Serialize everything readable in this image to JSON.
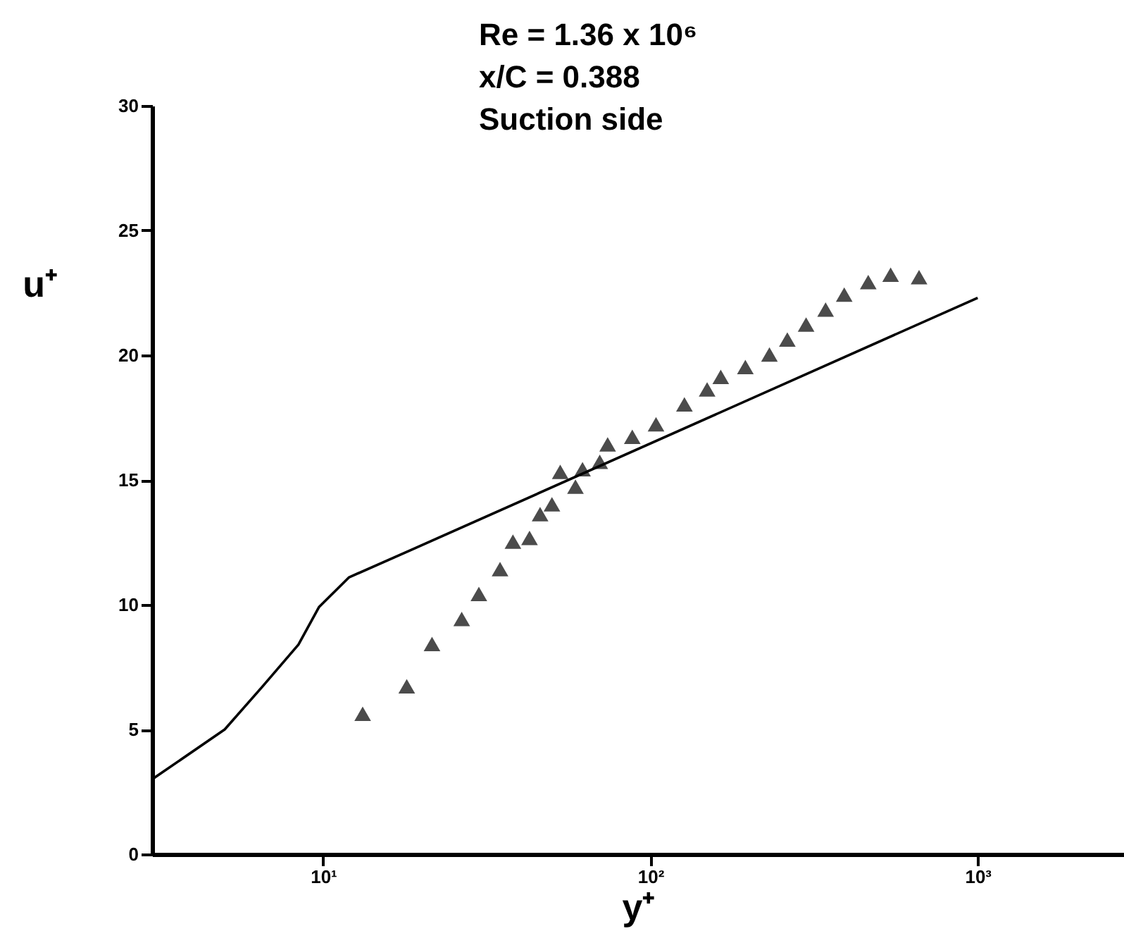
{
  "chart_data": {
    "type": "line",
    "title": "Re = 1.36 x 10⁶",
    "annotations": [
      "x/C = 0.388",
      "Suction side"
    ],
    "xlabel": "y⁺",
    "ylabel": "u⁺",
    "log": "x",
    "grid": false,
    "xlim": [
      3,
      2800
    ],
    "xticks": [
      {
        "value": 10,
        "label": "10¹"
      },
      {
        "value": 100,
        "label": "10²"
      },
      {
        "value": 1000,
        "label": "10³"
      }
    ],
    "ylim": [
      0,
      30
    ],
    "yticks": [
      0,
      5,
      10,
      15,
      20,
      25,
      30
    ],
    "series": [
      {
        "type": "line",
        "color": "#000000",
        "line_style": "solid",
        "marker": "none",
        "x": [
          3,
          5,
          6.5,
          8.4,
          9.7,
          12,
          18.6,
          1000
        ],
        "values": [
          3.0,
          5.0,
          6.7,
          8.4,
          9.9,
          11.1,
          12.2,
          22.3
        ]
      },
      {
        "type": "scatter",
        "color": "#000000",
        "marker": "triangle",
        "x": [
          13.2,
          18,
          21.5,
          26.5,
          29.9,
          34.7,
          38,
          42.7,
          46,
          50,
          53,
          59,
          62,
          70,
          74,
          88,
          104,
          127,
          149,
          164,
          195,
          231,
          262,
          299,
          343,
          391,
          463,
          542,
          662
        ],
        "values": [
          5.6,
          6.7,
          8.4,
          9.4,
          10.4,
          11.4,
          12.5,
          12.65,
          13.6,
          14.0,
          15.3,
          14.7,
          15.4,
          15.7,
          16.4,
          16.7,
          17.2,
          18.0,
          18.6,
          19.1,
          19.5,
          20.0,
          20.6,
          21.2,
          21.8,
          22.4,
          22.9,
          23.2,
          23.1
        ]
      }
    ]
  }
}
